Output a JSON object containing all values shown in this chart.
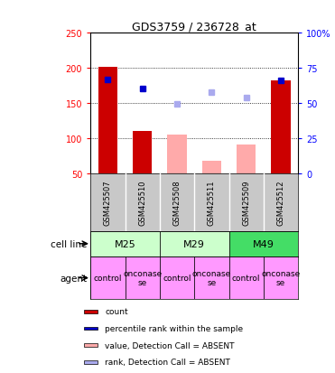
{
  "title": "GDS3759 / 236728_at",
  "samples": [
    "GSM425507",
    "GSM425510",
    "GSM425508",
    "GSM425511",
    "GSM425509",
    "GSM425512"
  ],
  "count_values": [
    202,
    110,
    null,
    null,
    null,
    182
  ],
  "count_absent_values": [
    null,
    null,
    105,
    68,
    90,
    null
  ],
  "rank_values": [
    183,
    170,
    null,
    null,
    null,
    182
  ],
  "rank_absent_values": [
    null,
    null,
    149,
    165,
    158,
    null
  ],
  "ylim_left": [
    50,
    250
  ],
  "ylim_right": [
    0,
    100
  ],
  "yticks_left": [
    50,
    100,
    150,
    200,
    250
  ],
  "yticks_right": [
    0,
    25,
    50,
    75,
    100
  ],
  "ytick_labels_left": [
    "50",
    "100",
    "150",
    "200",
    "250"
  ],
  "ytick_labels_right": [
    "0",
    "25",
    "50",
    "75",
    "100%"
  ],
  "agents": [
    "control",
    "onconase",
    "control",
    "onconase",
    "control",
    "onconase"
  ],
  "agent_color": "#ff99ff",
  "sample_bg": "#c8c8c8",
  "bar_color_present": "#cc0000",
  "bar_color_absent": "#ffaaaa",
  "rank_color_present": "#0000cc",
  "rank_color_absent": "#aaaaee",
  "cell_groups": [
    {
      "label": "M25",
      "start": 0,
      "end": 1,
      "color": "#ccffcc"
    },
    {
      "label": "M29",
      "start": 2,
      "end": 3,
      "color": "#ccffcc"
    },
    {
      "label": "M49",
      "start": 4,
      "end": 5,
      "color": "#44dd66"
    }
  ],
  "legend_items": [
    {
      "color": "#cc0000",
      "label": "count"
    },
    {
      "color": "#0000cc",
      "label": "percentile rank within the sample"
    },
    {
      "color": "#ffaaaa",
      "label": "value, Detection Call = ABSENT"
    },
    {
      "color": "#aaaaee",
      "label": "rank, Detection Call = ABSENT"
    }
  ]
}
